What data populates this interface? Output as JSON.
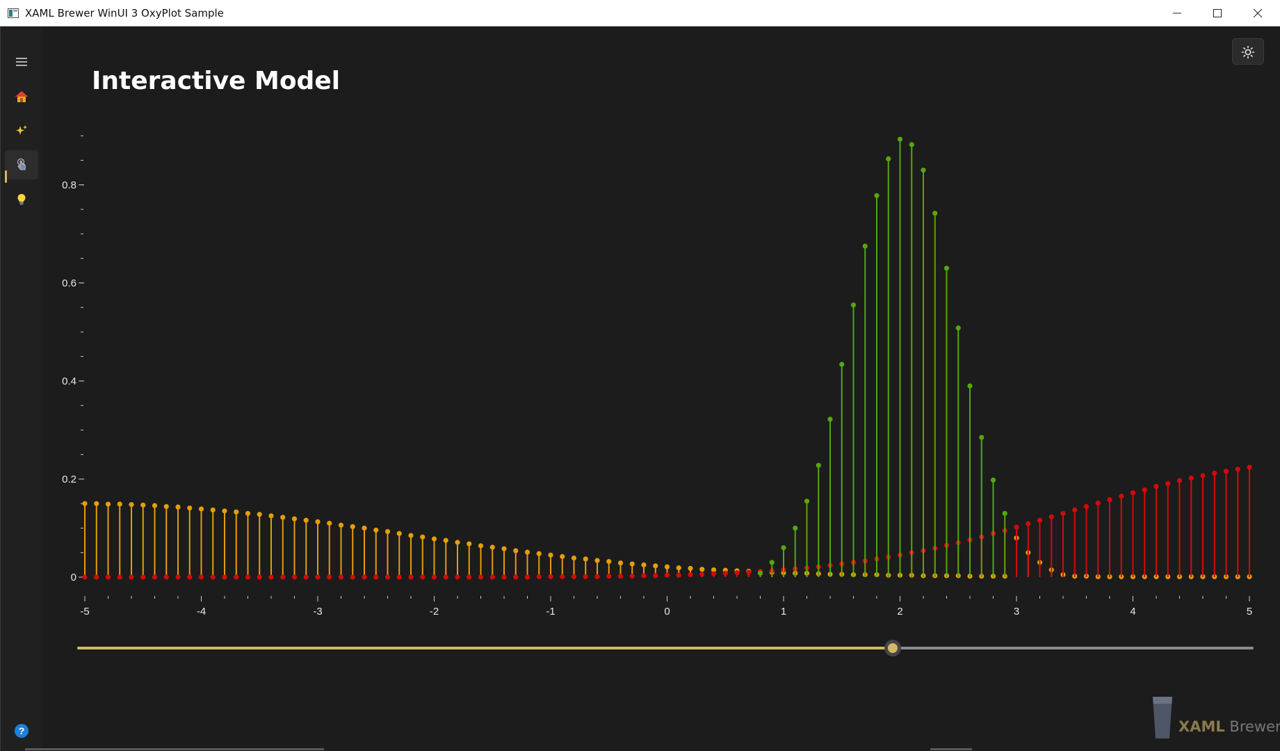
{
  "window": {
    "title": "XAML Brewer WinUI 3 OxyPlot Sample",
    "minimize_icon": "minimize-icon",
    "maximize_icon": "maximize-icon",
    "close_icon": "close-icon"
  },
  "nav": {
    "items": [
      {
        "name": "menu",
        "icon": "hamburger-icon"
      },
      {
        "name": "home",
        "icon": "home-icon"
      },
      {
        "name": "effects",
        "icon": "sparkles-icon"
      },
      {
        "name": "interactive",
        "icon": "touch-hand-icon",
        "selected": true
      },
      {
        "name": "ideas",
        "icon": "lightbulb-icon"
      }
    ],
    "help_icon": "help-icon"
  },
  "page": {
    "title": "Interactive Model"
  },
  "theme_toggle_icon": "sun-icon",
  "slider": {
    "min": -5,
    "max": 5,
    "value": 1.93
  },
  "branding": {
    "brand_word": "XAML",
    "brand_rest": " Brewer"
  },
  "colors": {
    "accent": "#d4b868",
    "series_orange": "#e39e0a",
    "series_red": "#d40a0a",
    "series_green": "#55a80a",
    "axis": "#cccccc"
  },
  "chart_data": {
    "type": "stem",
    "title": "",
    "xlabel": "",
    "ylabel": "",
    "xlim": [
      -5,
      5
    ],
    "ylim": [
      0,
      0.95
    ],
    "x_ticks": [
      "-5",
      "-4",
      "-3",
      "-2",
      "-1",
      "0",
      "1",
      "2",
      "3",
      "4",
      "5"
    ],
    "y_ticks": [
      "0",
      "0.2",
      "0.4",
      "0.6",
      "0.8"
    ],
    "x_step": 0.1,
    "grid": false,
    "legend": "none",
    "series": [
      {
        "color": "orange",
        "points": [
          [
            -5.0,
            0.15
          ],
          [
            -4.9,
            0.15
          ],
          [
            -4.8,
            0.149
          ],
          [
            -4.7,
            0.149
          ],
          [
            -4.6,
            0.148
          ],
          [
            -4.5,
            0.147
          ],
          [
            -4.4,
            0.146
          ],
          [
            -4.3,
            0.144
          ],
          [
            -4.2,
            0.143
          ],
          [
            -4.1,
            0.141
          ],
          [
            -4.0,
            0.139
          ],
          [
            -3.9,
            0.137
          ],
          [
            -3.8,
            0.135
          ],
          [
            -3.7,
            0.133
          ],
          [
            -3.6,
            0.13
          ],
          [
            -3.5,
            0.128
          ],
          [
            -3.4,
            0.125
          ],
          [
            -3.3,
            0.122
          ],
          [
            -3.2,
            0.119
          ],
          [
            -3.1,
            0.116
          ],
          [
            -3.0,
            0.113
          ],
          [
            -2.9,
            0.11
          ],
          [
            -2.8,
            0.106
          ],
          [
            -2.7,
            0.103
          ],
          [
            -2.6,
            0.1
          ],
          [
            -2.5,
            0.096
          ],
          [
            -2.4,
            0.093
          ],
          [
            -2.3,
            0.089
          ],
          [
            -2.2,
            0.085
          ],
          [
            -2.1,
            0.082
          ],
          [
            -2.0,
            0.078
          ],
          [
            -1.9,
            0.075
          ],
          [
            -1.8,
            0.071
          ],
          [
            -1.7,
            0.068
          ],
          [
            -1.6,
            0.064
          ],
          [
            -1.5,
            0.061
          ],
          [
            -1.4,
            0.058
          ],
          [
            -1.3,
            0.054
          ],
          [
            -1.2,
            0.051
          ],
          [
            -1.1,
            0.048
          ],
          [
            -1.0,
            0.045
          ],
          [
            -0.9,
            0.042
          ],
          [
            -0.8,
            0.039
          ],
          [
            -0.7,
            0.037
          ],
          [
            -0.6,
            0.034
          ],
          [
            -0.5,
            0.032
          ],
          [
            -0.4,
            0.029
          ],
          [
            -0.3,
            0.027
          ],
          [
            -0.2,
            0.025
          ],
          [
            -0.1,
            0.023
          ],
          [
            0.0,
            0.021
          ],
          [
            0.1,
            0.019
          ],
          [
            0.2,
            0.018
          ],
          [
            0.3,
            0.016
          ],
          [
            0.4,
            0.015
          ],
          [
            0.5,
            0.014
          ],
          [
            0.6,
            0.013
          ],
          [
            0.7,
            0.012
          ],
          [
            0.8,
            0.011
          ],
          [
            0.9,
            0.01
          ],
          [
            1.0,
            0.009
          ],
          [
            1.1,
            0.008
          ],
          [
            1.2,
            0.008
          ],
          [
            1.3,
            0.007
          ],
          [
            1.4,
            0.006
          ],
          [
            1.5,
            0.006
          ],
          [
            1.6,
            0.005
          ],
          [
            1.7,
            0.005
          ],
          [
            1.8,
            0.005
          ],
          [
            1.9,
            0.004
          ],
          [
            2.0,
            0.004
          ],
          [
            2.1,
            0.004
          ],
          [
            2.2,
            0.003
          ],
          [
            2.3,
            0.003
          ],
          [
            2.4,
            0.003
          ],
          [
            2.5,
            0.003
          ],
          [
            2.6,
            0.002
          ],
          [
            2.7,
            0.002
          ],
          [
            2.8,
            0.002
          ],
          [
            2.9,
            0.002
          ],
          [
            3.0,
            0.08
          ],
          [
            3.1,
            0.05
          ],
          [
            3.2,
            0.03
          ],
          [
            3.3,
            0.015
          ],
          [
            3.4,
            0.005
          ],
          [
            3.5,
            0.002
          ],
          [
            3.6,
            0.002
          ],
          [
            3.7,
            0.001
          ],
          [
            3.8,
            0.001
          ],
          [
            3.9,
            0.001
          ],
          [
            4.0,
            0.001
          ],
          [
            4.1,
            0.001
          ],
          [
            4.2,
            0.001
          ],
          [
            4.3,
            0.001
          ],
          [
            4.4,
            0.001
          ],
          [
            4.5,
            0.001
          ],
          [
            4.6,
            0.001
          ],
          [
            4.7,
            0.001
          ],
          [
            4.8,
            0.001
          ],
          [
            4.9,
            0.001
          ],
          [
            5.0,
            0.001
          ]
        ]
      },
      {
        "color": "red",
        "points": [
          [
            -5.0,
            0.0
          ],
          [
            -4.9,
            0.0
          ],
          [
            -4.8,
            0.0
          ],
          [
            -4.7,
            0.0
          ],
          [
            -4.6,
            0.0
          ],
          [
            -4.5,
            0.0
          ],
          [
            -4.4,
            0.0
          ],
          [
            -4.3,
            0.0
          ],
          [
            -4.2,
            0.0
          ],
          [
            -4.1,
            0.0
          ],
          [
            -4.0,
            0.0
          ],
          [
            -3.9,
            0.0
          ],
          [
            -3.8,
            0.0
          ],
          [
            -3.7,
            0.0
          ],
          [
            -3.6,
            0.0
          ],
          [
            -3.5,
            0.0
          ],
          [
            -3.4,
            0.0
          ],
          [
            -3.3,
            0.0
          ],
          [
            -3.2,
            0.0
          ],
          [
            -3.1,
            0.0
          ],
          [
            -3.0,
            0.0
          ],
          [
            -2.9,
            0.0
          ],
          [
            -2.8,
            0.0
          ],
          [
            -2.7,
            0.0
          ],
          [
            -2.6,
            0.0
          ],
          [
            -2.5,
            0.0
          ],
          [
            -2.4,
            0.0
          ],
          [
            -2.3,
            0.0
          ],
          [
            -2.2,
            0.0
          ],
          [
            -2.1,
            0.0
          ],
          [
            -2.0,
            0.0
          ],
          [
            -1.9,
            0.0
          ],
          [
            -1.8,
            0.0
          ],
          [
            -1.7,
            0.0
          ],
          [
            -1.6,
            0.0
          ],
          [
            -1.5,
            0.0
          ],
          [
            -1.4,
            0.0
          ],
          [
            -1.3,
            0.0
          ],
          [
            -1.2,
            0.0
          ],
          [
            -1.1,
            0.001
          ],
          [
            -1.0,
            0.001
          ],
          [
            -0.9,
            0.001
          ],
          [
            -0.8,
            0.001
          ],
          [
            -0.7,
            0.001
          ],
          [
            -0.6,
            0.001
          ],
          [
            -0.5,
            0.002
          ],
          [
            -0.4,
            0.002
          ],
          [
            -0.3,
            0.002
          ],
          [
            -0.2,
            0.003
          ],
          [
            -0.1,
            0.003
          ],
          [
            0.0,
            0.004
          ],
          [
            0.1,
            0.004
          ],
          [
            0.2,
            0.005
          ],
          [
            0.3,
            0.006
          ],
          [
            0.4,
            0.007
          ],
          [
            0.5,
            0.008
          ],
          [
            0.6,
            0.009
          ],
          [
            0.7,
            0.01
          ],
          [
            0.8,
            0.012
          ],
          [
            0.9,
            0.013
          ],
          [
            1.0,
            0.015
          ],
          [
            1.1,
            0.017
          ],
          [
            1.2,
            0.019
          ],
          [
            1.3,
            0.021
          ],
          [
            1.4,
            0.024
          ],
          [
            1.5,
            0.027
          ],
          [
            1.6,
            0.03
          ],
          [
            1.7,
            0.033
          ],
          [
            1.8,
            0.037
          ],
          [
            1.9,
            0.041
          ],
          [
            2.0,
            0.045
          ],
          [
            2.1,
            0.05
          ],
          [
            2.2,
            0.054
          ],
          [
            2.3,
            0.059
          ],
          [
            2.4,
            0.065
          ],
          [
            2.5,
            0.07
          ],
          [
            2.6,
            0.076
          ],
          [
            2.7,
            0.082
          ],
          [
            2.8,
            0.089
          ],
          [
            2.9,
            0.095
          ],
          [
            3.0,
            0.102
          ],
          [
            3.1,
            0.109
          ],
          [
            3.2,
            0.116
          ],
          [
            3.3,
            0.123
          ],
          [
            3.4,
            0.13
          ],
          [
            3.5,
            0.137
          ],
          [
            3.6,
            0.144
          ],
          [
            3.7,
            0.151
          ],
          [
            3.8,
            0.158
          ],
          [
            3.9,
            0.165
          ],
          [
            4.0,
            0.172
          ],
          [
            4.1,
            0.178
          ],
          [
            4.2,
            0.185
          ],
          [
            4.3,
            0.191
          ],
          [
            4.4,
            0.197
          ],
          [
            4.5,
            0.202
          ],
          [
            4.6,
            0.207
          ],
          [
            4.7,
            0.212
          ],
          [
            4.8,
            0.216
          ],
          [
            4.9,
            0.22
          ],
          [
            5.0,
            0.224
          ]
        ]
      },
      {
        "color": "green",
        "points": [
          [
            0.8,
            0.008
          ],
          [
            0.9,
            0.03
          ],
          [
            1.0,
            0.06
          ],
          [
            1.1,
            0.1
          ],
          [
            1.2,
            0.155
          ],
          [
            1.3,
            0.228
          ],
          [
            1.4,
            0.322
          ],
          [
            1.5,
            0.434
          ],
          [
            1.6,
            0.555
          ],
          [
            1.7,
            0.675
          ],
          [
            1.8,
            0.778
          ],
          [
            1.9,
            0.853
          ],
          [
            2.0,
            0.893
          ],
          [
            2.1,
            0.882
          ],
          [
            2.2,
            0.83
          ],
          [
            2.3,
            0.742
          ],
          [
            2.4,
            0.63
          ],
          [
            2.5,
            0.508
          ],
          [
            2.6,
            0.39
          ],
          [
            2.7,
            0.285
          ],
          [
            2.8,
            0.198
          ],
          [
            2.9,
            0.13
          ]
        ]
      }
    ]
  }
}
